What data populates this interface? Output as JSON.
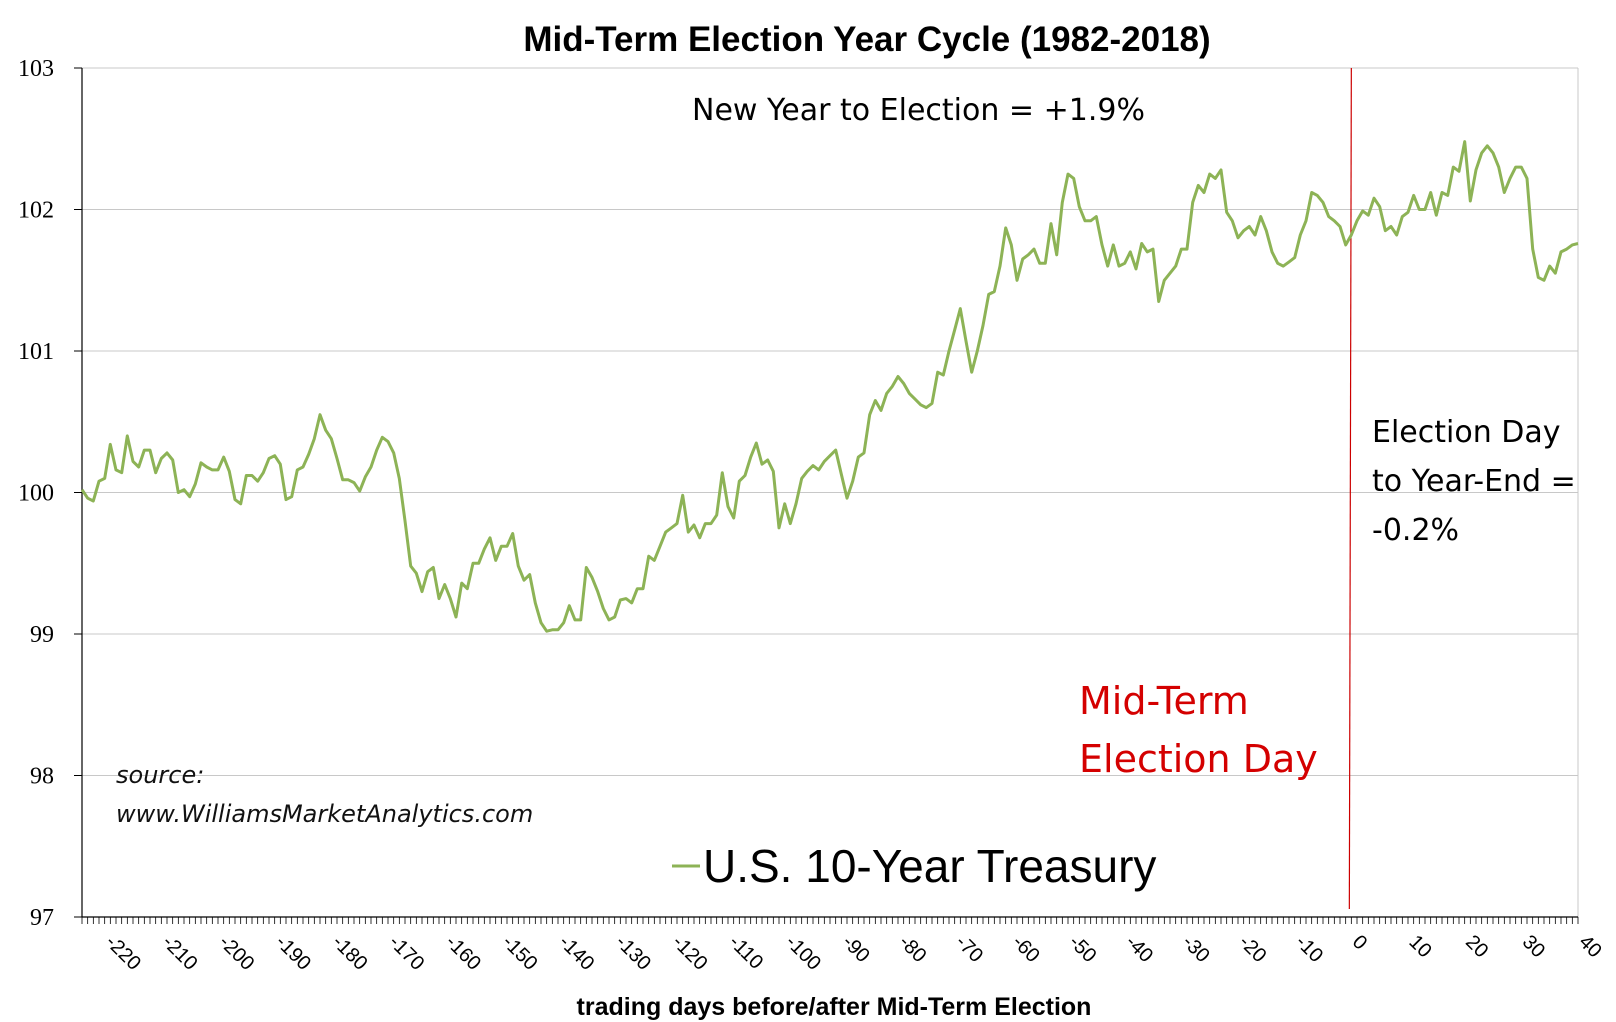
{
  "chart_data": {
    "type": "line",
    "title": "Mid-Term Election Year Cycle (1982-2018)",
    "xlabel": "trading days before/after Mid-Term Election",
    "ylabel": "",
    "xlim": [
      -224,
      40
    ],
    "ylim": [
      97,
      103
    ],
    "yticks": [
      "103",
      "102",
      "101",
      "100",
      "99",
      "98",
      "97"
    ],
    "xticks": [
      "-220",
      "-210",
      "-200",
      "-190",
      "-180",
      "-170",
      "-160",
      "-150",
      "-140",
      "-130",
      "-120",
      "-110",
      "-100",
      "-90",
      "-80",
      "-70",
      "-60",
      "-50",
      "-40",
      "-30",
      "-20",
      "-10",
      "0",
      "10",
      "20",
      "30",
      "40"
    ],
    "grid": "horizontal",
    "legend_position": "bottom-center",
    "line_color": "#8db356",
    "marker_line_color": "#cc0000",
    "series": [
      {
        "name": "U.S. 10-Year Treasury",
        "points": [
          [
            -224,
            100.02
          ],
          [
            -223,
            99.96
          ],
          [
            -222,
            99.94
          ],
          [
            -221,
            100.08
          ],
          [
            -220,
            100.1
          ],
          [
            -219,
            100.34
          ],
          [
            -218,
            100.16
          ],
          [
            -217,
            100.14
          ],
          [
            -216,
            100.4
          ],
          [
            -215,
            100.22
          ],
          [
            -214,
            100.18
          ],
          [
            -213,
            100.3
          ],
          [
            -212,
            100.3
          ],
          [
            -211,
            100.14
          ],
          [
            -210,
            100.24
          ],
          [
            -209,
            100.28
          ],
          [
            -208,
            100.23
          ],
          [
            -207,
            100.0
          ],
          [
            -206,
            100.02
          ],
          [
            -205,
            99.97
          ],
          [
            -204,
            100.06
          ],
          [
            -203,
            100.21
          ],
          [
            -202,
            100.18
          ],
          [
            -201,
            100.16
          ],
          [
            -200,
            100.16
          ],
          [
            -199,
            100.25
          ],
          [
            -198,
            100.15
          ],
          [
            -197,
            99.95
          ],
          [
            -196,
            99.92
          ],
          [
            -195,
            100.12
          ],
          [
            -194,
            100.12
          ],
          [
            -193,
            100.08
          ],
          [
            -192,
            100.14
          ],
          [
            -191,
            100.24
          ],
          [
            -190,
            100.26
          ],
          [
            -189,
            100.2
          ],
          [
            -188,
            99.95
          ],
          [
            -187,
            99.97
          ],
          [
            -186,
            100.16
          ],
          [
            -185,
            100.18
          ],
          [
            -184,
            100.27
          ],
          [
            -183,
            100.38
          ],
          [
            -182,
            100.55
          ],
          [
            -181,
            100.44
          ],
          [
            -180,
            100.38
          ],
          [
            -179,
            100.24
          ],
          [
            -178,
            100.09
          ],
          [
            -177,
            100.09
          ],
          [
            -176,
            100.07
          ],
          [
            -175,
            100.01
          ],
          [
            -174,
            100.11
          ],
          [
            -173,
            100.18
          ],
          [
            -172,
            100.3
          ],
          [
            -171,
            100.39
          ],
          [
            -170,
            100.36
          ],
          [
            -169,
            100.28
          ],
          [
            -168,
            100.1
          ],
          [
            -167,
            99.8
          ],
          [
            -166,
            99.48
          ],
          [
            -165,
            99.43
          ],
          [
            -164,
            99.3
          ],
          [
            -163,
            99.44
          ],
          [
            -162,
            99.47
          ],
          [
            -161,
            99.25
          ],
          [
            -160,
            99.35
          ],
          [
            -159,
            99.25
          ],
          [
            -158,
            99.12
          ],
          [
            -157,
            99.36
          ],
          [
            -156,
            99.32
          ],
          [
            -155,
            99.5
          ],
          [
            -154,
            99.5
          ],
          [
            -153,
            99.6
          ],
          [
            -152,
            99.68
          ],
          [
            -151,
            99.52
          ],
          [
            -150,
            99.62
          ],
          [
            -149,
            99.62
          ],
          [
            -148,
            99.71
          ],
          [
            -147,
            99.48
          ],
          [
            -146,
            99.38
          ],
          [
            -145,
            99.42
          ],
          [
            -144,
            99.22
          ],
          [
            -143,
            99.08
          ],
          [
            -142,
            99.02
          ],
          [
            -141,
            99.03
          ],
          [
            -140,
            99.03
          ],
          [
            -139,
            99.08
          ],
          [
            -138,
            99.2
          ],
          [
            -137,
            99.1
          ],
          [
            -136,
            99.1
          ],
          [
            -135,
            99.47
          ],
          [
            -134,
            99.4
          ],
          [
            -133,
            99.3
          ],
          [
            -132,
            99.18
          ],
          [
            -131,
            99.1
          ],
          [
            -130,
            99.12
          ],
          [
            -129,
            99.24
          ],
          [
            -128,
            99.25
          ],
          [
            -127,
            99.22
          ],
          [
            -126,
            99.32
          ],
          [
            -125,
            99.32
          ],
          [
            -124,
            99.55
          ],
          [
            -123,
            99.52
          ],
          [
            -122,
            99.62
          ],
          [
            -121,
            99.72
          ],
          [
            -120,
            99.75
          ],
          [
            -119,
            99.78
          ],
          [
            -118,
            99.98
          ],
          [
            -117,
            99.72
          ],
          [
            -116,
            99.77
          ],
          [
            -115,
            99.68
          ],
          [
            -114,
            99.78
          ],
          [
            -113,
            99.78
          ],
          [
            -112,
            99.84
          ],
          [
            -111,
            100.14
          ],
          [
            -110,
            99.9
          ],
          [
            -109,
            99.82
          ],
          [
            -108,
            100.08
          ],
          [
            -107,
            100.12
          ],
          [
            -106,
            100.25
          ],
          [
            -105,
            100.35
          ],
          [
            -104,
            100.2
          ],
          [
            -103,
            100.23
          ],
          [
            -102,
            100.15
          ],
          [
            -101,
            99.75
          ],
          [
            -100,
            99.92
          ],
          [
            -99,
            99.78
          ],
          [
            -98,
            99.92
          ],
          [
            -97,
            100.1
          ],
          [
            -96,
            100.15
          ],
          [
            -95,
            100.19
          ],
          [
            -94,
            100.16
          ],
          [
            -93,
            100.22
          ],
          [
            -92,
            100.26
          ],
          [
            -91,
            100.3
          ],
          [
            -90,
            100.13
          ],
          [
            -89,
            99.96
          ],
          [
            -88,
            100.08
          ],
          [
            -87,
            100.25
          ],
          [
            -86,
            100.28
          ],
          [
            -85,
            100.55
          ],
          [
            -84,
            100.65
          ],
          [
            -83,
            100.58
          ],
          [
            -82,
            100.7
          ],
          [
            -81,
            100.75
          ],
          [
            -80,
            100.82
          ],
          [
            -79,
            100.77
          ],
          [
            -78,
            100.7
          ],
          [
            -77,
            100.66
          ],
          [
            -76,
            100.62
          ],
          [
            -75,
            100.6
          ],
          [
            -74,
            100.63
          ],
          [
            -73,
            100.85
          ],
          [
            -72,
            100.83
          ],
          [
            -71,
            101.0
          ],
          [
            -70,
            101.15
          ],
          [
            -69,
            101.3
          ],
          [
            -68,
            101.07
          ],
          [
            -67,
            100.85
          ],
          [
            -66,
            101.0
          ],
          [
            -65,
            101.18
          ],
          [
            -64,
            101.4
          ],
          [
            -63,
            101.42
          ],
          [
            -62,
            101.6
          ],
          [
            -61,
            101.87
          ],
          [
            -60,
            101.75
          ],
          [
            -59,
            101.5
          ],
          [
            -58,
            101.65
          ],
          [
            -57,
            101.68
          ],
          [
            -56,
            101.72
          ],
          [
            -55,
            101.62
          ],
          [
            -54,
            101.62
          ],
          [
            -53,
            101.9
          ],
          [
            -52,
            101.68
          ],
          [
            -51,
            102.05
          ],
          [
            -50,
            102.25
          ],
          [
            -49,
            102.22
          ],
          [
            -48,
            102.02
          ],
          [
            -47,
            101.92
          ],
          [
            -46,
            101.92
          ],
          [
            -45,
            101.95
          ],
          [
            -44,
            101.75
          ],
          [
            -43,
            101.6
          ],
          [
            -42,
            101.75
          ],
          [
            -41,
            101.6
          ],
          [
            -40,
            101.62
          ],
          [
            -39,
            101.7
          ],
          [
            -38,
            101.58
          ],
          [
            -37,
            101.76
          ],
          [
            -36,
            101.7
          ],
          [
            -35,
            101.72
          ],
          [
            -34,
            101.35
          ],
          [
            -33,
            101.5
          ],
          [
            -32,
            101.55
          ],
          [
            -31,
            101.6
          ],
          [
            -30,
            101.72
          ],
          [
            -29,
            101.72
          ],
          [
            -28,
            102.05
          ],
          [
            -27,
            102.17
          ],
          [
            -26,
            102.12
          ],
          [
            -25,
            102.25
          ],
          [
            -24,
            102.22
          ],
          [
            -23,
            102.28
          ],
          [
            -22,
            101.98
          ],
          [
            -21,
            101.92
          ],
          [
            -20,
            101.8
          ],
          [
            -19,
            101.85
          ],
          [
            -18,
            101.88
          ],
          [
            -17,
            101.82
          ],
          [
            -16,
            101.95
          ],
          [
            -15,
            101.85
          ],
          [
            -14,
            101.7
          ],
          [
            -13,
            101.62
          ],
          [
            -12,
            101.6
          ],
          [
            -11,
            101.63
          ],
          [
            -10,
            101.66
          ],
          [
            -9,
            101.82
          ],
          [
            -8,
            101.92
          ],
          [
            -7,
            102.12
          ],
          [
            -6,
            102.1
          ],
          [
            -5,
            102.05
          ],
          [
            -4,
            101.95
          ],
          [
            -3,
            101.92
          ],
          [
            -2,
            101.88
          ],
          [
            -1,
            101.75
          ],
          [
            0,
            101.82
          ],
          [
            1,
            101.92
          ],
          [
            2,
            101.99
          ],
          [
            3,
            101.96
          ],
          [
            4,
            102.08
          ],
          [
            5,
            102.02
          ],
          [
            6,
            101.85
          ],
          [
            7,
            101.88
          ],
          [
            8,
            101.82
          ],
          [
            9,
            101.95
          ],
          [
            10,
            101.98
          ],
          [
            11,
            102.1
          ],
          [
            12,
            102.0
          ],
          [
            13,
            102.0
          ],
          [
            14,
            102.12
          ],
          [
            15,
            101.96
          ],
          [
            16,
            102.12
          ],
          [
            17,
            102.1
          ],
          [
            18,
            102.3
          ],
          [
            19,
            102.27
          ],
          [
            20,
            102.48
          ],
          [
            21,
            102.06
          ],
          [
            22,
            102.28
          ],
          [
            23,
            102.4
          ],
          [
            24,
            102.45
          ],
          [
            25,
            102.4
          ],
          [
            26,
            102.3
          ],
          [
            27,
            102.12
          ],
          [
            28,
            102.22
          ],
          [
            29,
            102.3
          ],
          [
            30,
            102.3
          ],
          [
            31,
            102.22
          ],
          [
            32,
            101.72
          ],
          [
            33,
            101.52
          ],
          [
            34,
            101.5
          ],
          [
            35,
            101.6
          ],
          [
            36,
            101.55
          ],
          [
            37,
            101.7
          ],
          [
            38,
            101.72
          ],
          [
            39,
            101.75
          ],
          [
            40,
            101.76
          ]
        ]
      }
    ],
    "annotations": {
      "new_year_to_election": "New Year to Election = +1.9%",
      "election_to_year_end_line1": "Election Day",
      "election_to_year_end_line2": "to Year-End =",
      "election_to_year_end_line3": "-0.2%",
      "election_day_line1": "Mid-Term",
      "election_day_line2": "Election Day",
      "election_day_x": 0,
      "source_line1": "source:",
      "source_line2": "www.WilliamsMarketAnalytics.com"
    },
    "legend": "U.S. 10-Year Treasury"
  }
}
